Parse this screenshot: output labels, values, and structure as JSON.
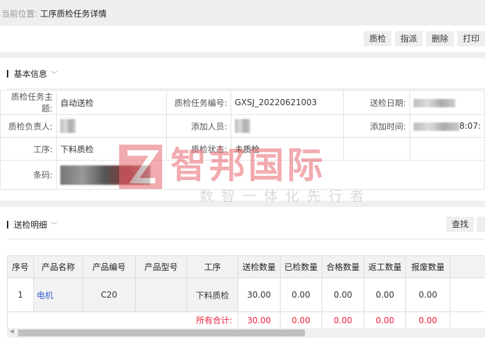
{
  "breadcrumb": {
    "prefix": "当前位置:",
    "current": "工序质检任务详情"
  },
  "toolbar": {
    "buttons": [
      "质检",
      "指派",
      "删除",
      "打印"
    ]
  },
  "basic_info": {
    "title": "基本信息",
    "fields": {
      "subject_label": "质检任务主题:",
      "subject": "自动送检",
      "code_label": "质检任务编号:",
      "code": "GXSJ_20220621003",
      "date_label": "送检日期:",
      "owner_label": "质检负责人:",
      "adder_label": "添加人员:",
      "time_label": "添加时间:",
      "time_partial": "8:07:",
      "process_label": "工序:",
      "process": "下料质检",
      "status_label": "质检状态:",
      "status": "未质检",
      "barcode_label": "条码:"
    }
  },
  "detail": {
    "title": "送检明细",
    "find_button": "查找",
    "columns": [
      "序号",
      "产品名称",
      "产品编号",
      "产品型号",
      "工序",
      "送检数量",
      "已检数量",
      "合格数量",
      "返工数量",
      "报废数量"
    ],
    "rows": [
      {
        "no": "1",
        "name": "电机",
        "code": "C20",
        "model": "",
        "process": "下料质检",
        "sent": "30.00",
        "checked": "0.00",
        "passed": "0.00",
        "rework": "0.00",
        "scrap": "0.00"
      }
    ],
    "total": {
      "label": "所有合计:",
      "sent": "30.00",
      "checked": "0.00",
      "passed": "0.00",
      "rework": "0.00",
      "scrap": "0.00"
    }
  },
  "watermark": {
    "brand": "智邦国际",
    "slogan": "数智一体化先行者"
  },
  "colors": {
    "link": "#3a5fcd",
    "total": "#f0203a",
    "watermark": "#e8676f"
  }
}
